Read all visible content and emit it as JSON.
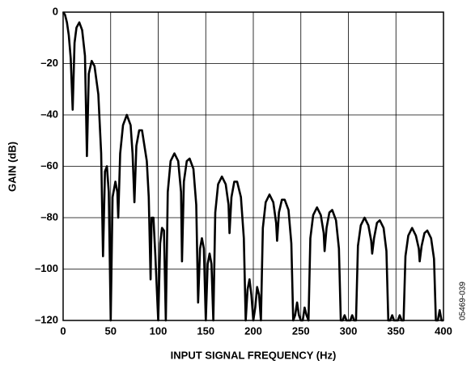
{
  "chart_data": {
    "type": "line",
    "x_label": "INPUT SIGNAL FREQUENCY (Hz)",
    "y_label": "GAIN (dB)",
    "figure_id": "05469-039",
    "xlim": [
      0,
      400
    ],
    "xticks": [
      0,
      50,
      100,
      150,
      200,
      250,
      300,
      350,
      400
    ],
    "ylim": [
      -120,
      0
    ],
    "yticks": [
      {
        "value": -120,
        "label": "–120"
      },
      {
        "value": -100,
        "label": "–100"
      },
      {
        "value": -80,
        "label": "–80"
      },
      {
        "value": -60,
        "label": "–60"
      },
      {
        "value": -40,
        "label": "–40"
      },
      {
        "value": -20,
        "label": "–20"
      },
      0
    ],
    "grid": true,
    "series": [
      {
        "color": "#000000",
        "x": [
          0,
          2,
          4,
          6,
          8,
          10,
          12,
          14,
          17,
          20,
          23,
          25,
          27,
          30,
          33,
          37,
          40,
          42,
          44,
          46,
          48,
          50,
          52,
          55,
          57,
          58,
          60,
          63,
          67,
          71,
          73,
          75,
          77,
          80,
          83,
          88,
          90,
          92,
          93,
          95,
          97,
          100,
          102,
          104,
          106,
          108,
          110,
          113,
          117,
          121,
          124,
          125,
          127,
          130,
          133,
          137,
          140,
          142,
          144,
          146,
          148,
          150,
          152,
          154,
          156,
          158,
          160,
          163,
          167,
          171,
          174,
          175,
          177,
          180,
          183,
          187,
          190,
          192,
          194,
          196,
          198,
          200,
          202,
          204,
          206,
          208,
          210,
          213,
          217,
          221,
          224,
          225,
          227,
          230,
          233,
          237,
          240,
          242,
          244,
          246,
          248,
          250,
          252,
          254,
          256,
          258,
          260,
          263,
          267,
          271,
          274,
          275,
          277,
          280,
          283,
          287,
          290,
          292,
          294,
          296,
          298,
          300,
          302,
          304,
          306,
          308,
          310,
          313,
          317,
          321,
          324,
          325,
          327,
          330,
          333,
          337,
          340,
          342,
          344,
          346,
          348,
          350,
          352,
          354,
          356,
          358,
          360,
          363,
          367,
          371,
          374,
          375,
          377,
          380,
          383,
          387,
          390,
          392,
          394,
          396,
          398,
          400
        ],
        "values": [
          0,
          -1,
          -4,
          -9,
          -18,
          -38,
          -12,
          -6,
          -4,
          -7,
          -17,
          -56,
          -24,
          -19,
          -21,
          -32,
          -55,
          -95,
          -62,
          -60,
          -70,
          -120,
          -72,
          -66,
          -70,
          -80,
          -55,
          -44,
          -40,
          -44,
          -55,
          -74,
          -52,
          -46,
          -46,
          -58,
          -72,
          -104,
          -80,
          -80,
          -95,
          -120,
          -90,
          -84,
          -85,
          -120,
          -70,
          -58,
          -55,
          -58,
          -70,
          -97,
          -66,
          -58,
          -57,
          -61,
          -75,
          -113,
          -92,
          -88,
          -92,
          -120,
          -98,
          -94,
          -98,
          -120,
          -78,
          -67,
          -64,
          -67,
          -75,
          -86,
          -72,
          -66,
          -66,
          -72,
          -88,
          -120,
          -108,
          -104,
          -110,
          -120,
          -115,
          -107,
          -110,
          -120,
          -84,
          -74,
          -71,
          -74,
          -82,
          -89,
          -78,
          -73,
          -73,
          -77,
          -90,
          -120,
          -118,
          -113,
          -118,
          -120,
          -120,
          -115,
          -118,
          -120,
          -88,
          -79,
          -76,
          -79,
          -86,
          -93,
          -84,
          -78,
          -77,
          -81,
          -92,
          -120,
          -120,
          -118,
          -120,
          -120,
          -120,
          -118,
          -120,
          -120,
          -91,
          -83,
          -80,
          -83,
          -89,
          -94,
          -88,
          -82,
          -81,
          -84,
          -93,
          -120,
          -120,
          -118,
          -120,
          -120,
          -120,
          -118,
          -120,
          -120,
          -95,
          -87,
          -84,
          -87,
          -92,
          -97,
          -91,
          -86,
          -85,
          -88,
          -96,
          -120,
          -120,
          -116,
          -120,
          -120
        ]
      }
    ]
  }
}
